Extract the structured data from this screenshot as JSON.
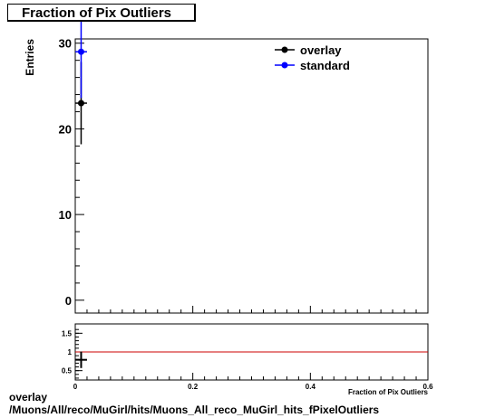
{
  "title": "Fraction of Pix Outliers",
  "footer": {
    "line1": "overlay",
    "line2": "/Muons/All/reco/MuGirl/hits/Muons_All_reco_MuGirl_hits_fPixelOutliers"
  },
  "colors": {
    "overlay": "#000000",
    "standard": "#0000ff",
    "ratio_line": "#cc0000"
  },
  "chart_data": [
    {
      "type": "scatter",
      "title": "Fraction of Pix Outliers",
      "xlabel": "Fraction of Pix Outliers",
      "ylabel": "Entries",
      "xlim": [
        0,
        0.6
      ],
      "ylim": [
        -1.5,
        30.5
      ],
      "y_ticks": [
        0,
        10,
        20,
        30
      ],
      "x_ticks": [
        0,
        0.2,
        0.4,
        0.6
      ],
      "legend": {
        "placement": "top-right",
        "entries": [
          "overlay",
          "standard"
        ]
      },
      "series": [
        {
          "name": "overlay",
          "color": "#000000",
          "points": [
            {
              "x": 0.01,
              "y": 23,
              "yerr": 4.8,
              "xerr": 0.01
            }
          ]
        },
        {
          "name": "standard",
          "color": "#0000ff",
          "points": [
            {
              "x": 0.01,
              "y": 29,
              "yerr": 5.4,
              "xerr": 0.01
            }
          ]
        }
      ]
    },
    {
      "type": "scatter",
      "title": "",
      "ylabel": "",
      "xlim": [
        0,
        0.6
      ],
      "ylim": [
        0.25,
        1.75
      ],
      "y_ticks": [
        0.5,
        1,
        1.5
      ],
      "x_ticks": [
        0,
        0.2,
        0.4,
        0.6
      ],
      "reference_line": 1,
      "series": [
        {
          "name": "ratio",
          "color": "#000000",
          "points": [
            {
              "x": 0.01,
              "y": 0.79,
              "yerr": 0.22,
              "xerr": 0.01
            }
          ]
        }
      ]
    }
  ]
}
